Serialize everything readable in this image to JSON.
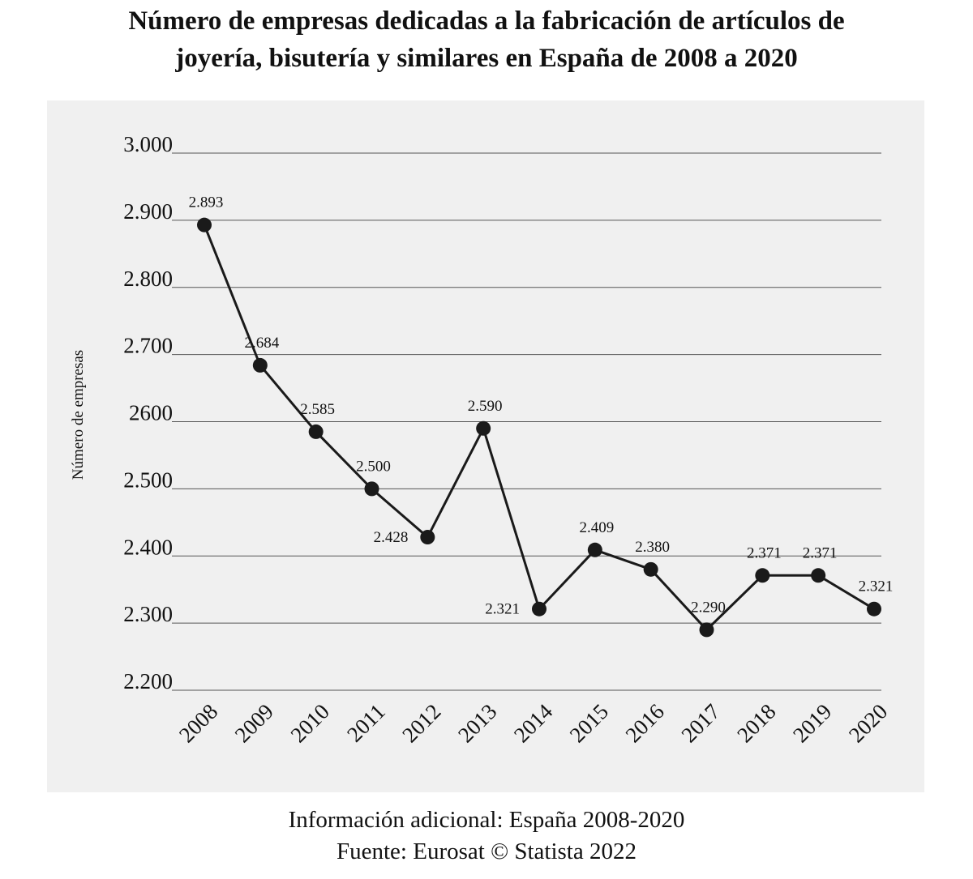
{
  "chart_data": {
    "type": "line",
    "title": [
      "Número de empresas dedicadas a la fabricación de artículos de",
      "joyería, bisutería y similares en España de 2008 a 2020"
    ],
    "y_label": "Número de empresas",
    "categories": [
      "2008",
      "2009",
      "2010",
      "2011",
      "2012",
      "2013",
      "2014",
      "2015",
      "2016",
      "2017",
      "2018",
      "2019",
      "2020"
    ],
    "values": [
      2893,
      2684,
      2585,
      2500,
      2428,
      2590,
      2321,
      2409,
      2380,
      2290,
      2371,
      2371,
      2321
    ],
    "value_labels": [
      "2.893",
      "2.684",
      "2.585",
      "2.500",
      "2.428",
      "2.590",
      "2.321",
      "2.409",
      "2.380",
      "2.290",
      "2.371",
      "2.371",
      "2.321"
    ],
    "color": "#1a1a1a",
    "ylim": [
      2200,
      3000
    ],
    "yticks": [
      {
        "value": 2200,
        "label": "2.200"
      },
      {
        "value": 2300,
        "label": "2.300"
      },
      {
        "value": 2400,
        "label": "2.400"
      },
      {
        "value": 2500,
        "label": "2.500"
      },
      2600,
      {
        "value": 2700,
        "label": "2.700"
      },
      {
        "value": 2800,
        "label": "2.800"
      },
      {
        "value": 2900,
        "label": "2.900"
      },
      {
        "value": 3000,
        "label": "3.000"
      }
    ],
    "grid": true,
    "footer": [
      "Información adicional: España 2008-2020",
      "Fuente: Eurosat © Statista 2022"
    ]
  }
}
